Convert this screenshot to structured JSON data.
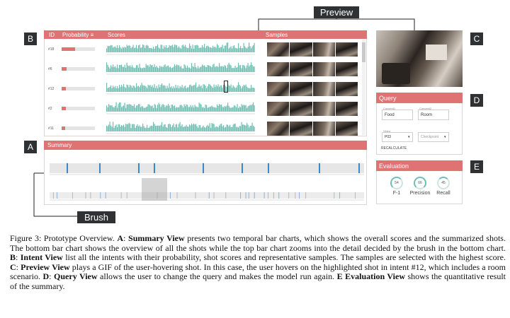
{
  "callouts": {
    "preview": "Preview",
    "brush": "Brush",
    "a": "A",
    "b": "B",
    "c": "C",
    "d": "D",
    "e": "E"
  },
  "intent_view": {
    "col_id": "ID",
    "col_probability": "Probability",
    "col_scores": "Scores",
    "col_samples": "Samples",
    "rows": [
      {
        "id": "#18",
        "probability": 0.28
      },
      {
        "id": "#6",
        "probability": 0.1
      },
      {
        "id": "#12",
        "probability": 0.09
      },
      {
        "id": "#2",
        "probability": 0.09
      },
      {
        "id": "#11",
        "probability": 0.08
      }
    ]
  },
  "summary_view": {
    "title": "Summary"
  },
  "query_view": {
    "title": "Query",
    "concept1_label": "Concept1",
    "concept1_value": "Food",
    "concept2_label": "Concept2",
    "concept2_value": "Room",
    "video_label": "Video",
    "video_value": "P03",
    "checkpoint_value": "Checkpoint",
    "recalculate": "RECALCULATE"
  },
  "evaluation_view": {
    "title": "Evaluation",
    "metrics": [
      {
        "label": "F-1",
        "value": "54"
      },
      {
        "label": "Precision",
        "value": "66"
      },
      {
        "label": "Recall",
        "value": "45"
      }
    ]
  },
  "caption": {
    "s1_prefix": "Figure 3: Prototype Overview. ",
    "a_letter": "A",
    "a_name": "Summary View",
    "a_text": " presents two temporal bar charts, which shows the overall scores and the summarized shots. The bottom bar chart shows the overview of all the shots while the top bar chart zooms into the detail decided by the brush in the bottom chart. ",
    "b_letter": "B",
    "b_name": "Intent View",
    "b_text": " list all the intents with their probability, shot scores and representative samples. The samples are selected with the highest score. ",
    "c_letter": "C",
    "c_name": "Preview View",
    "c_text": " plays a GIF of the user-hovering shot. In this case, the user hovers on the highlighted shot in intent #12, which includes a room scenario. ",
    "d_letter": "D",
    "d_name": "Query View",
    "d_text": " allows the user to change the query and makes the model run again. ",
    "e_name": "E Evaluation View",
    "e_text": " shows the quantitative result of the summary."
  },
  "colors": {
    "header": "#df7373",
    "score_teal": "#6fbfb2",
    "summary_blue": "#3d87c9",
    "callout_bg": "#2f3133"
  }
}
